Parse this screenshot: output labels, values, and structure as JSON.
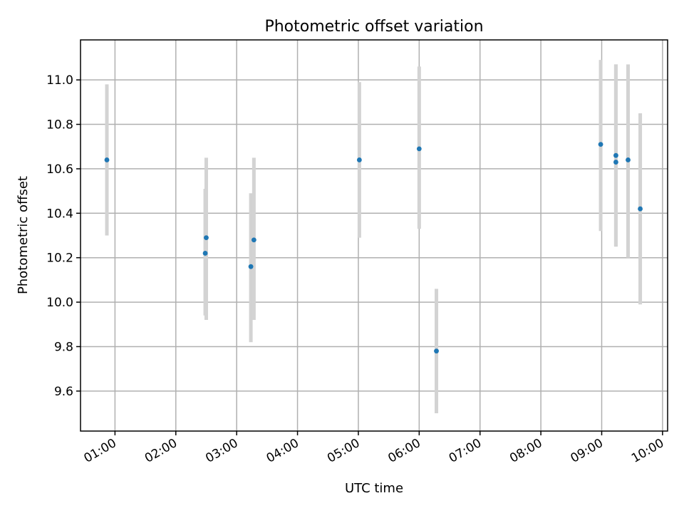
{
  "chart_data": {
    "type": "scatter",
    "title": "Photometric offset variation",
    "xlabel": "UTC time",
    "ylabel": "Photometric offset",
    "xlim": [
      "00:26",
      "10:05"
    ],
    "ylim": [
      9.42,
      11.18
    ],
    "grid": true,
    "x_ticks": [
      "01:00",
      "02:00",
      "03:00",
      "04:00",
      "05:00",
      "06:00",
      "07:00",
      "08:00",
      "09:00",
      "10:00"
    ],
    "y_ticks": [
      "9.6",
      "9.8",
      "10.0",
      "10.2",
      "10.4",
      "10.6",
      "10.8",
      "11.0"
    ],
    "point_color": "#1f77b4",
    "errorbar_color": "#d3d3d3",
    "points": [
      {
        "x": "00:52",
        "y": 10.64,
        "ylow": 10.3,
        "yhigh": 10.98
      },
      {
        "x": "02:29",
        "y": 10.22,
        "ylow": 9.94,
        "yhigh": 10.51
      },
      {
        "x": "02:30",
        "y": 10.29,
        "ylow": 9.92,
        "yhigh": 10.65
      },
      {
        "x": "03:14",
        "y": 10.16,
        "ylow": 9.82,
        "yhigh": 10.49
      },
      {
        "x": "03:17",
        "y": 10.28,
        "ylow": 9.92,
        "yhigh": 10.65
      },
      {
        "x": "05:01",
        "y": 10.64,
        "ylow": 10.29,
        "yhigh": 10.99
      },
      {
        "x": "06:00",
        "y": 10.69,
        "ylow": 10.33,
        "yhigh": 11.06
      },
      {
        "x": "06:17",
        "y": 9.78,
        "ylow": 9.5,
        "yhigh": 10.06
      },
      {
        "x": "08:59",
        "y": 10.71,
        "ylow": 10.32,
        "yhigh": 11.09
      },
      {
        "x": "09:14",
        "y": 10.66,
        "ylow": 10.25,
        "yhigh": 11.07
      },
      {
        "x": "09:14",
        "y": 10.63,
        "ylow": 10.25,
        "yhigh": 11.07
      },
      {
        "x": "09:26",
        "y": 10.64,
        "ylow": 10.2,
        "yhigh": 11.07
      },
      {
        "x": "09:38",
        "y": 10.42,
        "ylow": 9.99,
        "yhigh": 10.85
      }
    ]
  }
}
